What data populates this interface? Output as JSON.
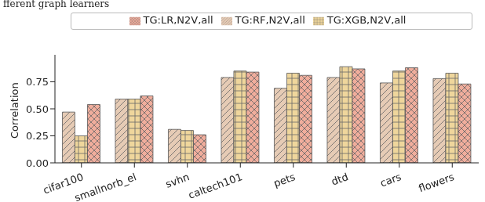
{
  "chart_data": {
    "type": "bar",
    "title": "fferent graph learners",
    "y_label": "Correlation",
    "categories": [
      "cifar100",
      "smallnorb_el",
      "svhn",
      "caltech101",
      "pets",
      "dtd",
      "cars",
      "flowers"
    ],
    "series": [
      {
        "name": "TG:RF,N2V,all",
        "color": "#e6cbb5",
        "values": [
          0.47,
          0.59,
          0.31,
          0.79,
          0.69,
          0.79,
          0.74,
          0.78
        ]
      },
      {
        "name": "TG:XGB,N2V,all",
        "color": "#efd69c",
        "values": [
          0.25,
          0.59,
          0.3,
          0.85,
          0.83,
          0.89,
          0.85,
          0.83
        ]
      },
      {
        "name": "TG:LR,N2V,all",
        "color": "#f0ad9c",
        "values": [
          0.54,
          0.62,
          0.26,
          0.84,
          0.81,
          0.87,
          0.88,
          0.73
        ]
      }
    ],
    "ylim": [
      0,
      1.0
    ],
    "yticks": [
      {
        "value": 0,
        "label": "0.00"
      },
      {
        "value": 0.25,
        "label": "0.25"
      },
      {
        "value": 0.5,
        "label": "0.50"
      },
      {
        "value": 0.75,
        "label": "0.75"
      }
    ],
    "legend": "top"
  }
}
